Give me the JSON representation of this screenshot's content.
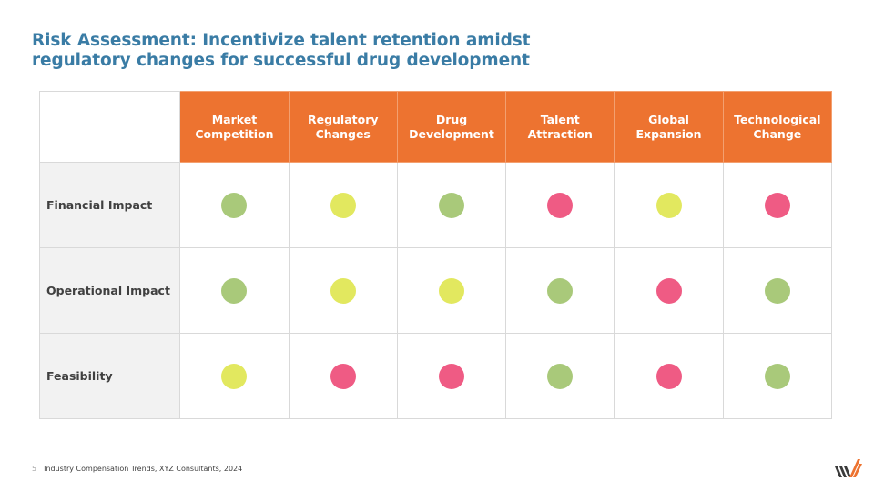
{
  "title": {
    "line1": "Risk Assessment: Incentivize talent retention amidst",
    "line2": "regulatory changes for successful drug development"
  },
  "chart_data": {
    "type": "table",
    "columns": [
      {
        "line1": "Market",
        "line2": "Competition"
      },
      {
        "line1": "Regulatory",
        "line2": "Changes"
      },
      {
        "line1": "Drug",
        "line2": "Development"
      },
      {
        "line1": "Talent",
        "line2": "Attraction"
      },
      {
        "line1": "Global",
        "line2": "Expansion"
      },
      {
        "line1": "Technological",
        "line2": "Change"
      }
    ],
    "rows": [
      {
        "label": "Financial Impact",
        "values": [
          "green",
          "yellow",
          "green",
          "red",
          "yellow",
          "red"
        ]
      },
      {
        "label": "Operational Impact",
        "values": [
          "green",
          "yellow",
          "yellow",
          "green",
          "red",
          "green"
        ]
      },
      {
        "label": "Feasibility",
        "values": [
          "yellow",
          "red",
          "red",
          "green",
          "red",
          "green"
        ]
      }
    ],
    "colors": {
      "green": "#a9c97a",
      "yellow": "#e2e85f",
      "red": "#ef5b84",
      "header": "#ed7330"
    }
  },
  "footer": {
    "page": "5",
    "source": "Industry Compensation Trends, XYZ Consultants, 2024"
  },
  "logo": {
    "icon": "striped-logo-icon"
  }
}
